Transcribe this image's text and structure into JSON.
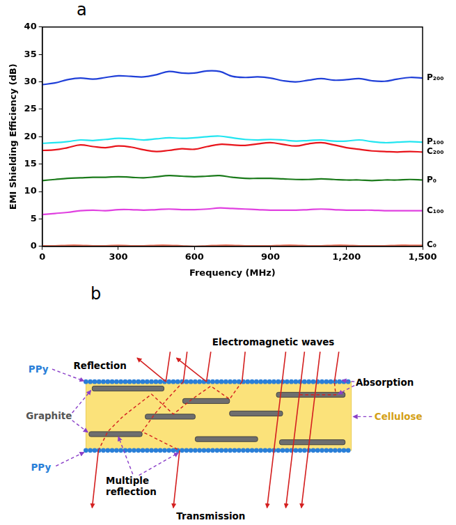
{
  "chart_data": {
    "type": "line",
    "panel_label": "a",
    "x_label": "Frequency (MHz)",
    "y_label": "EMI Shielding Efficiency (dB)",
    "x": [
      0,
      50,
      100,
      150,
      200,
      250,
      300,
      350,
      400,
      450,
      500,
      550,
      600,
      650,
      700,
      750,
      800,
      850,
      900,
      950,
      1000,
      1050,
      1100,
      1150,
      1200,
      1250,
      1300,
      1350,
      1400,
      1450,
      1500
    ],
    "series": [
      {
        "name": "P₂₀₀",
        "color": "#1f3fd8",
        "values": [
          29.5,
          29.8,
          30.4,
          30.7,
          30.5,
          30.8,
          31.1,
          31.0,
          30.9,
          31.3,
          31.9,
          31.6,
          31.6,
          32.0,
          31.9,
          31.0,
          30.8,
          30.9,
          30.7,
          30.2,
          30.0,
          30.3,
          30.6,
          30.3,
          30.4,
          30.6,
          30.2,
          30.1,
          30.5,
          30.8,
          30.7
        ]
      },
      {
        "name": "P₁₀₀",
        "color": "#22e5f0",
        "values": [
          18.8,
          18.9,
          19.1,
          19.4,
          19.3,
          19.5,
          19.7,
          19.6,
          19.4,
          19.6,
          19.8,
          19.7,
          19.8,
          20.0,
          20.1,
          19.8,
          19.5,
          19.4,
          19.5,
          19.4,
          19.2,
          19.3,
          19.4,
          19.2,
          19.2,
          19.4,
          19.1,
          18.9,
          19.0,
          19.1,
          19.0
        ]
      },
      {
        "name": "C₂₀₀",
        "color": "#e8141b",
        "values": [
          17.5,
          17.6,
          18.0,
          18.5,
          18.2,
          18.0,
          18.3,
          18.1,
          17.6,
          17.3,
          17.5,
          17.8,
          17.7,
          18.2,
          18.6,
          18.5,
          18.4,
          18.7,
          18.9,
          18.6,
          18.3,
          18.7,
          18.9,
          18.5,
          18.0,
          17.7,
          17.4,
          17.3,
          17.2,
          17.3,
          17.2
        ]
      },
      {
        "name": "P₀",
        "color": "#1a7a1a",
        "values": [
          12.0,
          12.2,
          12.4,
          12.5,
          12.6,
          12.6,
          12.7,
          12.6,
          12.5,
          12.7,
          12.9,
          12.8,
          12.7,
          12.8,
          12.9,
          12.6,
          12.4,
          12.4,
          12.4,
          12.3,
          12.2,
          12.2,
          12.3,
          12.2,
          12.1,
          12.1,
          12.0,
          12.1,
          12.1,
          12.2,
          12.1
        ]
      },
      {
        "name": "C₁₀₀",
        "color": "#e040e0",
        "values": [
          5.8,
          6.0,
          6.2,
          6.5,
          6.6,
          6.5,
          6.7,
          6.7,
          6.6,
          6.7,
          6.8,
          6.7,
          6.7,
          6.8,
          7.0,
          6.9,
          6.8,
          6.7,
          6.6,
          6.6,
          6.6,
          6.7,
          6.8,
          6.7,
          6.6,
          6.6,
          6.6,
          6.5,
          6.5,
          6.5,
          6.5
        ]
      },
      {
        "name": "C₀",
        "color": "#e8735c",
        "values": [
          0.1,
          0.1,
          0.2,
          0.2,
          0.1,
          0.1,
          0.2,
          0.1,
          0.1,
          0.2,
          0.2,
          0.1,
          0.0,
          0.1,
          0.2,
          0.2,
          0.1,
          0.1,
          0.1,
          0.2,
          0.2,
          0.1,
          0.1,
          0.2,
          0.2,
          0.1,
          0.1,
          0.1,
          0.2,
          0.2,
          0.2
        ]
      }
    ],
    "xlim": [
      0,
      1500
    ],
    "xticks": [
      0,
      300,
      600,
      900,
      1200,
      1500
    ],
    "ylim": [
      0,
      40
    ],
    "yticks": [
      0,
      5,
      10,
      15,
      20,
      25,
      30,
      35,
      40
    ],
    "grid": false
  },
  "diagram": {
    "panel_label": "b",
    "texts": {
      "waves": "Electromagnetic waves",
      "reflection": "Reflection",
      "absorption": "Absorption",
      "ppy_top": "PPy",
      "ppy_bottom": "PPy",
      "graphite": "Graphite",
      "cellulose": "Cellulose",
      "multiple_reflection": "Multiple reflection",
      "transmission": "Transmission"
    }
  }
}
